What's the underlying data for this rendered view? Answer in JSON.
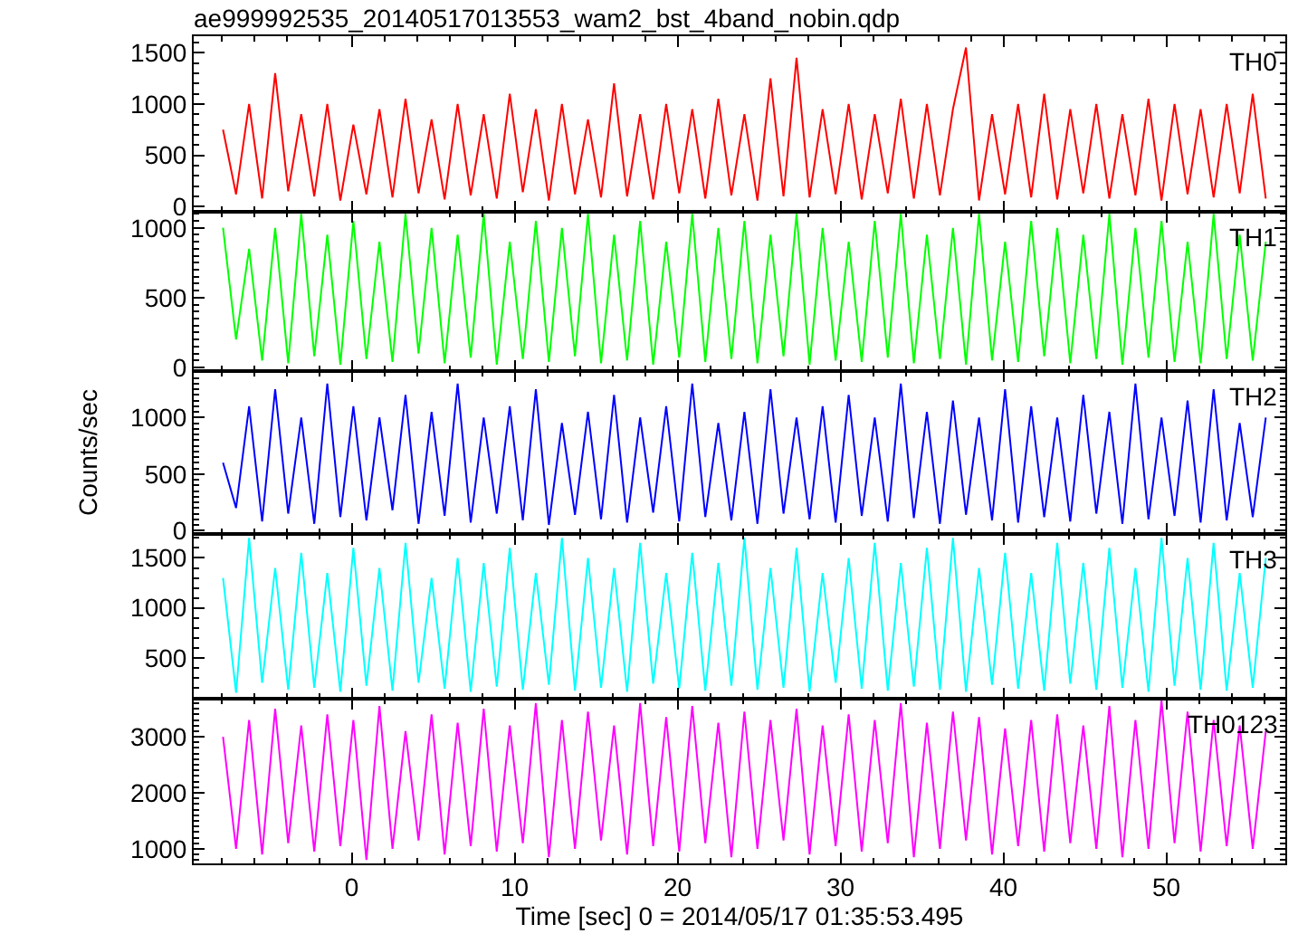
{
  "chart_data": [
    {
      "type": "line",
      "title": "ae999992535_20140517013553_wam2_bst_4band_nobin.qdp",
      "tick_labels": "y",
      "x": [
        -7.9,
        -7.1,
        -6.3,
        -5.5,
        -4.7,
        -3.9,
        -3.1,
        -2.3,
        -1.5,
        -0.7,
        0.1,
        0.9,
        1.7,
        2.5,
        3.3,
        4.1,
        4.9,
        5.7,
        6.5,
        7.3,
        8.1,
        8.9,
        9.7,
        10.5,
        11.3,
        12.1,
        12.9,
        13.7,
        14.5,
        15.3,
        16.1,
        16.9,
        17.7,
        18.5,
        19.3,
        20.1,
        20.9,
        21.7,
        22.5,
        23.3,
        24.1,
        24.9,
        25.7,
        26.5,
        27.3,
        28.1,
        28.9,
        29.7,
        30.5,
        31.3,
        32.1,
        32.9,
        33.7,
        34.5,
        35.3,
        36.1,
        36.9,
        37.7,
        38.5,
        39.3,
        40.1,
        40.9,
        41.7,
        42.5,
        43.3,
        44.1,
        44.9,
        45.7,
        46.5,
        47.3,
        48.1,
        48.9,
        49.7,
        50.5,
        51.3,
        52.1,
        52.9,
        53.7,
        54.5,
        55.3,
        56.1
      ],
      "xlim": [
        -9.7,
        57.3
      ],
      "xticks": [
        0,
        10,
        20,
        30,
        40,
        50
      ],
      "ylim": [
        -50,
        1660
      ],
      "yticks": [
        0,
        500,
        1000,
        1500
      ],
      "series": [
        {
          "name": "TH0",
          "color": "#ff0000",
          "values": [
            750,
            120,
            1000,
            80,
            1300,
            150,
            900,
            100,
            1000,
            60,
            800,
            120,
            950,
            90,
            1050,
            130,
            850,
            70,
            1000,
            110,
            900,
            80,
            1100,
            140,
            950,
            60,
            1000,
            120,
            850,
            90,
            1200,
            100,
            900,
            70,
            1000,
            130,
            950,
            80,
            1050,
            110,
            900,
            60,
            1250,
            100,
            1450,
            90,
            950,
            120,
            1000,
            70,
            900,
            130,
            1050,
            80,
            1000,
            110,
            950,
            1550,
            60,
            900,
            120,
            1000,
            90,
            1100,
            70,
            950,
            130,
            1000,
            80,
            900,
            110,
            1050,
            60,
            1000,
            120,
            950,
            90,
            1000,
            130,
            1100,
            80
          ]
        }
      ]
    },
    {
      "type": "line",
      "tick_labels": "y",
      "x": [
        -7.9,
        -7.1,
        -6.3,
        -5.5,
        -4.7,
        -3.9,
        -3.1,
        -2.3,
        -1.5,
        -0.7,
        0.1,
        0.9,
        1.7,
        2.5,
        3.3,
        4.1,
        4.9,
        5.7,
        6.5,
        7.3,
        8.1,
        8.9,
        9.7,
        10.5,
        11.3,
        12.1,
        12.9,
        13.7,
        14.5,
        15.3,
        16.1,
        16.9,
        17.7,
        18.5,
        19.3,
        20.1,
        20.9,
        21.7,
        22.5,
        23.3,
        24.1,
        24.9,
        25.7,
        26.5,
        27.3,
        28.1,
        28.9,
        29.7,
        30.5,
        31.3,
        32.1,
        32.9,
        33.7,
        34.5,
        35.3,
        36.1,
        36.9,
        37.7,
        38.5,
        39.3,
        40.1,
        40.9,
        41.7,
        42.5,
        43.3,
        44.1,
        44.9,
        45.7,
        46.5,
        47.3,
        48.1,
        48.9,
        49.7,
        50.5,
        51.3,
        52.1,
        52.9,
        53.7,
        54.5,
        55.3,
        56.1
      ],
      "xlim": [
        -9.7,
        57.3
      ],
      "xticks": [
        0,
        10,
        20,
        30,
        40,
        50
      ],
      "ylim": [
        -26,
        1115
      ],
      "yticks": [
        0,
        500,
        1000
      ],
      "series": [
        {
          "name": "TH1",
          "color": "#00ff00",
          "values": [
            1000,
            200,
            850,
            50,
            1000,
            30,
            1100,
            80,
            950,
            20,
            1050,
            60,
            900,
            40,
            1100,
            100,
            1000,
            30,
            950,
            70,
            1100,
            20,
            900,
            60,
            1050,
            40,
            1000,
            80,
            1100,
            30,
            950,
            50,
            1050,
            20,
            900,
            70,
            1100,
            40,
            1000,
            60,
            1050,
            30,
            950,
            80,
            1100,
            20,
            1000,
            50,
            900,
            40,
            1050,
            70,
            1100,
            30,
            950,
            60,
            1000,
            20,
            1100,
            50,
            900,
            40,
            1050,
            80,
            1000,
            30,
            950,
            60,
            1100,
            20,
            1000,
            70,
            1050,
            40,
            900,
            30,
            1100,
            60,
            950,
            50,
            900
          ]
        }
      ]
    },
    {
      "type": "line",
      "tick_labels": "y",
      "ylabel": "Counts/sec",
      "x": [
        -7.9,
        -7.1,
        -6.3,
        -5.5,
        -4.7,
        -3.9,
        -3.1,
        -2.3,
        -1.5,
        -0.7,
        0.1,
        0.9,
        1.7,
        2.5,
        3.3,
        4.1,
        4.9,
        5.7,
        6.5,
        7.3,
        8.1,
        8.9,
        9.7,
        10.5,
        11.3,
        12.1,
        12.9,
        13.7,
        14.5,
        15.3,
        16.1,
        16.9,
        17.7,
        18.5,
        19.3,
        20.1,
        20.9,
        21.7,
        22.5,
        23.3,
        24.1,
        24.9,
        25.7,
        26.5,
        27.3,
        28.1,
        28.9,
        29.7,
        30.5,
        31.3,
        32.1,
        32.9,
        33.7,
        34.5,
        35.3,
        36.1,
        36.9,
        37.7,
        38.5,
        39.3,
        40.1,
        40.9,
        41.7,
        42.5,
        43.3,
        44.1,
        44.9,
        45.7,
        46.5,
        47.3,
        48.1,
        48.9,
        49.7,
        50.5,
        51.3,
        52.1,
        52.9,
        53.7,
        54.5,
        55.3,
        56.1
      ],
      "xlim": [
        -9.7,
        57.3
      ],
      "xticks": [
        0,
        10,
        20,
        30,
        40,
        50
      ],
      "ylim": [
        -30,
        1410
      ],
      "yticks": [
        0,
        500,
        1000
      ],
      "series": [
        {
          "name": "TH2",
          "color": "#0000ff",
          "values": [
            600,
            200,
            1100,
            80,
            1250,
            150,
            1000,
            60,
            1300,
            120,
            1100,
            90,
            1000,
            180,
            1200,
            60,
            1050,
            130,
            1300,
            70,
            1000,
            150,
            1100,
            90,
            1250,
            50,
            950,
            140,
            1050,
            100,
            1200,
            70,
            1000,
            160,
            1100,
            80,
            1300,
            120,
            950,
            90,
            1050,
            60,
            1250,
            150,
            1000,
            100,
            1100,
            70,
            1200,
            130,
            1000,
            80,
            1300,
            110,
            1050,
            60,
            1150,
            140,
            1000,
            90,
            1250,
            70,
            1100,
            120,
            1000,
            80,
            1200,
            150,
            1050,
            60,
            1300,
            100,
            1000,
            130,
            1150,
            70,
            1250,
            90,
            950,
            120,
            1000
          ]
        }
      ]
    },
    {
      "type": "line",
      "tick_labels": "y",
      "x": [
        -7.9,
        -7.1,
        -6.3,
        -5.5,
        -4.7,
        -3.9,
        -3.1,
        -2.3,
        -1.5,
        -0.7,
        0.1,
        0.9,
        1.7,
        2.5,
        3.3,
        4.1,
        4.9,
        5.7,
        6.5,
        7.3,
        8.1,
        8.9,
        9.7,
        10.5,
        11.3,
        12.1,
        12.9,
        13.7,
        14.5,
        15.3,
        16.1,
        16.9,
        17.7,
        18.5,
        19.3,
        20.1,
        20.9,
        21.7,
        22.5,
        23.3,
        24.1,
        24.9,
        25.7,
        26.5,
        27.3,
        28.1,
        28.9,
        29.7,
        30.5,
        31.3,
        32.1,
        32.9,
        33.7,
        34.5,
        35.3,
        36.1,
        36.9,
        37.7,
        38.5,
        39.3,
        40.1,
        40.9,
        41.7,
        42.5,
        43.3,
        44.1,
        44.9,
        45.7,
        46.5,
        47.3,
        48.1,
        48.9,
        49.7,
        50.5,
        51.3,
        52.1,
        52.9,
        53.7,
        54.5,
        55.3,
        56.1
      ],
      "xlim": [
        -9.7,
        57.3
      ],
      "xticks": [
        0,
        10,
        20,
        30,
        40,
        50
      ],
      "ylim": [
        90,
        1740
      ],
      "yticks": [
        500,
        1000,
        1500
      ],
      "series": [
        {
          "name": "TH3",
          "color": "#00ffff",
          "values": [
            1300,
            150,
            1700,
            250,
            1400,
            180,
            1550,
            200,
            1350,
            160,
            1600,
            220,
            1400,
            170,
            1650,
            250,
            1300,
            190,
            1500,
            160,
            1450,
            210,
            1600,
            180,
            1350,
            230,
            1700,
            170,
            1500,
            200,
            1400,
            160,
            1650,
            240,
            1350,
            190,
            1550,
            170,
            1450,
            220,
            1700,
            180,
            1400,
            200,
            1600,
            160,
            1350,
            250,
            1500,
            190,
            1650,
            170,
            1450,
            210,
            1600,
            180,
            1700,
            160,
            1400,
            230,
            1550,
            190,
            1350,
            170,
            1650,
            240,
            1450,
            180,
            1600,
            200,
            1400,
            160,
            1700,
            220,
            1500,
            180,
            1650,
            170,
            1350,
            200,
            1500
          ]
        }
      ]
    },
    {
      "type": "line",
      "xlabel": "Time [sec] 0 = 2014/05/17 01:35:53.495",
      "x": [
        -7.9,
        -7.1,
        -6.3,
        -5.5,
        -4.7,
        -3.9,
        -3.1,
        -2.3,
        -1.5,
        -0.7,
        0.1,
        0.9,
        1.7,
        2.5,
        3.3,
        4.1,
        4.9,
        5.7,
        6.5,
        7.3,
        8.1,
        8.9,
        9.7,
        10.5,
        11.3,
        12.1,
        12.9,
        13.7,
        14.5,
        15.3,
        16.1,
        16.9,
        17.7,
        18.5,
        19.3,
        20.1,
        20.9,
        21.7,
        22.5,
        23.3,
        24.1,
        24.9,
        25.7,
        26.5,
        27.3,
        28.1,
        28.9,
        29.7,
        30.5,
        31.3,
        32.1,
        32.9,
        33.7,
        34.5,
        35.3,
        36.1,
        36.9,
        37.7,
        38.5,
        39.3,
        40.1,
        40.9,
        41.7,
        42.5,
        43.3,
        44.1,
        44.9,
        45.7,
        46.5,
        47.3,
        48.1,
        48.9,
        49.7,
        50.5,
        51.3,
        52.1,
        52.9,
        53.7,
        54.5,
        55.3,
        56.1
      ],
      "xlim": [
        -9.7,
        57.3
      ],
      "xticks": [
        0,
        10,
        20,
        30,
        40,
        50
      ],
      "ylim": [
        740,
        3680
      ],
      "yticks": [
        1000,
        2000,
        3000
      ],
      "series": [
        {
          "name": "TH0123",
          "color": "#ff00ff",
          "values": [
            3000,
            1000,
            3300,
            900,
            3500,
            1100,
            3200,
            950,
            3400,
            1050,
            3300,
            800,
            3550,
            1000,
            3100,
            1150,
            3400,
            900,
            3250,
            1050,
            3500,
            950,
            3200,
            1100,
            3600,
            850,
            3300,
            1000,
            3450,
            1150,
            3200,
            900,
            3600,
            1050,
            3350,
            950,
            3550,
            1100,
            3250,
            850,
            3450,
            1000,
            3300,
            1150,
            3500,
            900,
            3200,
            1050,
            3400,
            950,
            3300,
            1100,
            3600,
            850,
            3250,
            1000,
            3450,
            1150,
            3350,
            900,
            3150,
            1050,
            3300,
            950,
            3400,
            1100,
            3200,
            1000,
            3550,
            850,
            3300,
            1000,
            3650,
            1100,
            3450,
            950,
            3300,
            1050,
            3200,
            1000,
            3100
          ]
        }
      ]
    }
  ]
}
